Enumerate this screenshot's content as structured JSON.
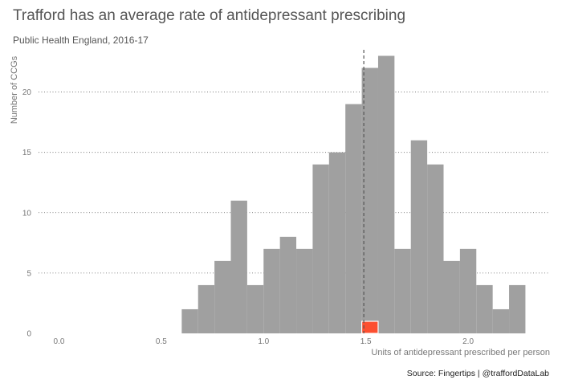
{
  "chart_data": {
    "type": "bar",
    "title": "Trafford has an average rate of antidepressant prescribing",
    "subtitle": "Public Health England, 2016-17",
    "xlabel": "Units of antidepressant prescribed per person",
    "ylabel": "Number of CCGs",
    "caption": "Source: Fingertips  |  @traffordDataLab",
    "xlim": [
      -0.1,
      2.4
    ],
    "ylim": [
      0,
      23.5
    ],
    "x_ticks": [
      0.0,
      0.5,
      1.0,
      1.5,
      2.0
    ],
    "x_tick_labels": [
      "0.0",
      "0.5",
      "1.0",
      "1.5",
      "2.0"
    ],
    "y_ticks": [
      0,
      5,
      10,
      15,
      20
    ],
    "y_tick_labels": [
      "0",
      "5",
      "10",
      "15",
      "20"
    ],
    "bin_width": 0.08,
    "bin_starts": [
      0.6,
      0.68,
      0.76,
      0.84,
      0.92,
      1.0,
      1.08,
      1.16,
      1.24,
      1.32,
      1.4,
      1.48,
      1.56,
      1.64,
      1.72,
      1.8,
      1.88,
      1.96,
      2.04,
      2.12,
      2.2
    ],
    "values": [
      2,
      4,
      6,
      11,
      4,
      7,
      8,
      7,
      14,
      15,
      19,
      22,
      23,
      7,
      16,
      14,
      6,
      7,
      4,
      2,
      4
    ],
    "highlight": {
      "label": "Trafford",
      "bin_start": 1.48,
      "value": 1,
      "color": "#fc4f30"
    },
    "reference_line": {
      "x": 1.49,
      "style": "dashed"
    },
    "bar_color": "#a0a0a0",
    "grid": "horizontal dotted"
  }
}
